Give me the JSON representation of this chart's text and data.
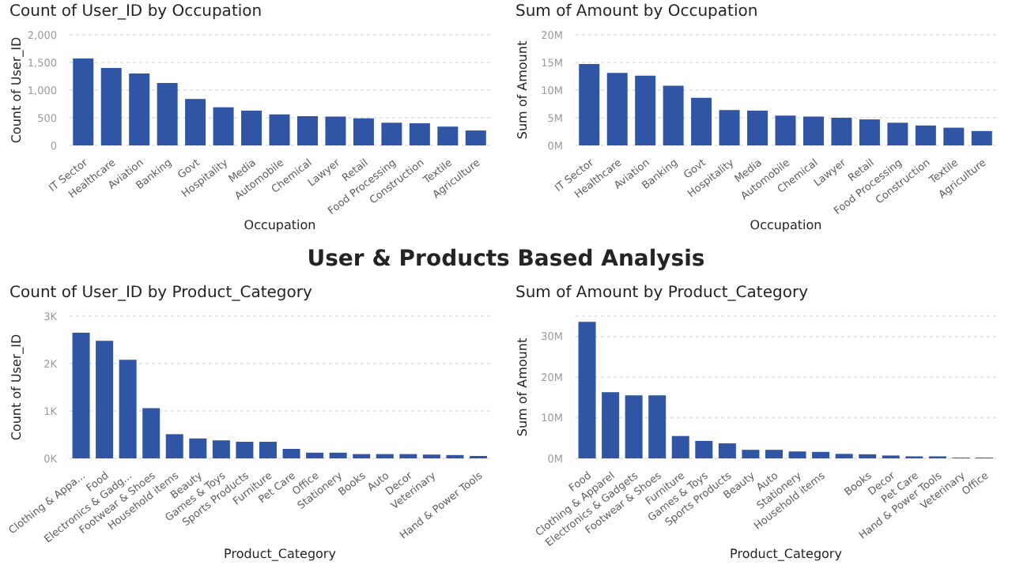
{
  "chart_data": [
    {
      "type": "bar",
      "title": "Count of User_ID by Occupation",
      "xlabel": "Occupation",
      "ylabel": "Count of User_ID",
      "categories": [
        "IT Sector",
        "Healthcare",
        "Aviation",
        "Banking",
        "Govt",
        "Hospitality",
        "Media",
        "Automobile",
        "Chemical",
        "Lawyer",
        "Retail",
        "Food Processing",
        "Construction",
        "Textile",
        "Agriculture"
      ],
      "values": [
        1570,
        1400,
        1300,
        1130,
        840,
        690,
        630,
        560,
        530,
        520,
        490,
        410,
        400,
        340,
        270
      ],
      "color": "#2f55a4",
      "ylim": [
        0,
        2000
      ],
      "yticks": [
        {
          "value": 0,
          "label": "0"
        },
        {
          "value": 500,
          "label": "500"
        },
        {
          "value": 1000,
          "label": "1,000"
        },
        {
          "value": 1500,
          "label": "1,500"
        },
        {
          "value": 2000,
          "label": "2,000"
        }
      ],
      "grid": "y"
    },
    {
      "type": "bar",
      "title": "Sum of Amount by Occupation",
      "xlabel": "Occupation",
      "ylabel": "Sum of Amount",
      "categories": [
        "IT Sector",
        "Healthcare",
        "Aviation",
        "Banking",
        "Govt",
        "Hospitality",
        "Media",
        "Automobile",
        "Chemical",
        "Lawyer",
        "Retail",
        "Food Processing",
        "Construction",
        "Textile",
        "Agriculture"
      ],
      "values": [
        14.7,
        13.1,
        12.6,
        10.8,
        8.6,
        6.4,
        6.3,
        5.4,
        5.2,
        5.0,
        4.7,
        4.1,
        3.6,
        3.2,
        2.6
      ],
      "color": "#2f55a4",
      "ylim": [
        0,
        20
      ],
      "yticks": [
        {
          "value": 0,
          "label": "0M"
        },
        {
          "value": 5,
          "label": "5M"
        },
        {
          "value": 10,
          "label": "10M"
        },
        {
          "value": 15,
          "label": "15M"
        },
        {
          "value": 20,
          "label": "20M"
        }
      ],
      "grid": "y"
    },
    {
      "type": "other",
      "title": "User & Products Based Analysis"
    },
    {
      "type": "bar",
      "title": "Count of User_ID by Product_Category",
      "xlabel": "Product_Category",
      "ylabel": "Count of User_ID",
      "categories": [
        "Clothing & Appa...",
        "Food",
        "Electronics & Gadg...",
        "Footwear & Shoes",
        "Household items",
        "Beauty",
        "Games & Toys",
        "Sports Products",
        "Furniture",
        "Pet Care",
        "Office",
        "Stationery",
        "Books",
        "Auto",
        "Decor",
        "Veterinary",
        null,
        "Hand & Power Tools"
      ],
      "values": [
        2650,
        2480,
        2080,
        1060,
        510,
        420,
        380,
        350,
        350,
        200,
        120,
        120,
        90,
        90,
        90,
        80,
        70,
        50
      ],
      "color": "#2f55a4",
      "ylim": [
        0,
        3000
      ],
      "yticks": [
        {
          "value": 0,
          "label": "0K"
        },
        {
          "value": 1000,
          "label": "1K"
        },
        {
          "value": 2000,
          "label": "2K"
        },
        {
          "value": 3000,
          "label": "3K"
        }
      ],
      "grid": "y"
    },
    {
      "type": "bar",
      "title": "Sum of Amount by Product_Category",
      "xlabel": "Product_Category",
      "ylabel": "Sum of Amount",
      "categories": [
        "Food",
        "Clothing & Apparel",
        "Electronics & Gadgets",
        "Footwear & Shoes",
        "Furniture",
        "Games & Toys",
        "Sports Products",
        "Beauty",
        "Auto",
        "Stationery",
        "Household items",
        null,
        "Books",
        "Decor",
        "Pet Care",
        "Hand & Power Tools",
        "Veterinary",
        "Office"
      ],
      "values": [
        33.6,
        16.3,
        15.5,
        15.5,
        5.5,
        4.3,
        3.7,
        2.1,
        2.1,
        1.7,
        1.6,
        1.1,
        1.0,
        0.7,
        0.5,
        0.5,
        0.2,
        0.2
      ],
      "color": "#2f55a4",
      "ylim": [
        0,
        35
      ],
      "yticks": [
        {
          "value": 0,
          "label": "0M"
        },
        {
          "value": 10,
          "label": "10M"
        },
        {
          "value": 20,
          "label": "20M"
        },
        {
          "value": 30,
          "label": "30M"
        }
      ],
      "grid": "y"
    }
  ]
}
